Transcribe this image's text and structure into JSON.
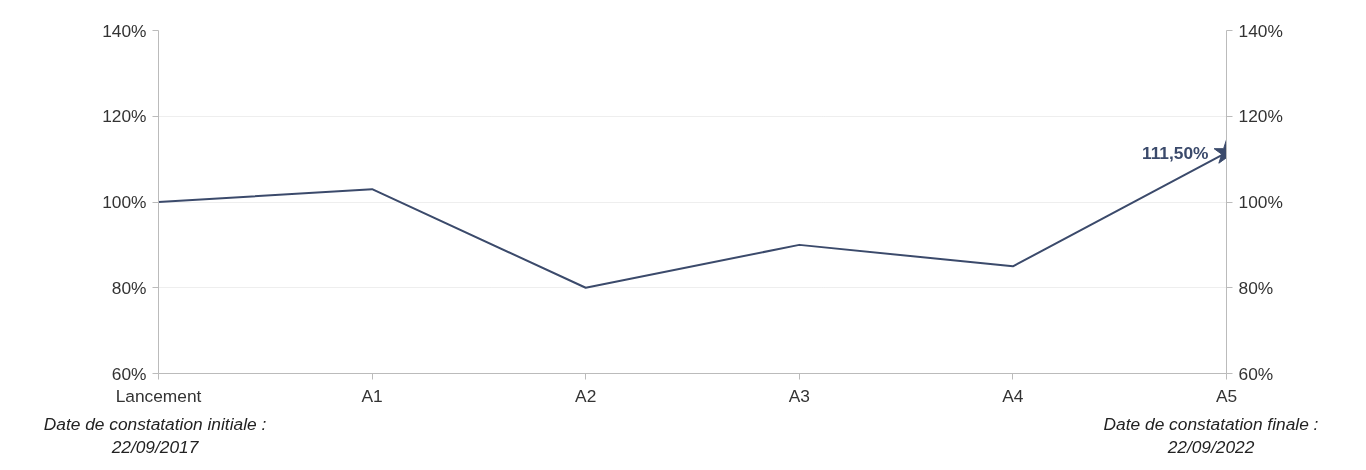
{
  "chart_data": {
    "type": "line",
    "categories": [
      "Lancement",
      "A1",
      "A2",
      "A3",
      "A4",
      "A5"
    ],
    "series": [
      {
        "color": "#3b4a6b",
        "values": [
          100,
          103,
          80,
          90,
          85,
          111.5
        ]
      },
      {
        "type": "scatter",
        "color": "#3b4a6b",
        "marker": "star",
        "values": [
          null,
          null,
          null,
          null,
          null,
          111.5
        ],
        "value_labels": [
          null,
          null,
          null,
          null,
          null,
          "111,50%"
        ]
      }
    ],
    "ylim": [
      60,
      140
    ],
    "yticks": [
      {
        "value": 60,
        "label": "60%"
      },
      {
        "value": 80,
        "label": "80%"
      },
      {
        "value": 100,
        "label": "100%"
      },
      {
        "value": 120,
        "label": "120%"
      },
      {
        "value": 140,
        "label": "140%"
      }
    ],
    "y2lim": [
      60,
      140
    ],
    "y2ticks": [
      {
        "value": 60,
        "label": "60%"
      },
      {
        "value": 80,
        "label": "80%"
      },
      {
        "value": 100,
        "label": "100%"
      },
      {
        "value": 120,
        "label": "120%"
      },
      {
        "value": 140,
        "label": "140%"
      }
    ],
    "grid": "y",
    "marker": "none",
    "annotations": [
      "Date de constatation initiale :\n22/09/2017",
      "Date de constatation finale :\n22/09/2022"
    ]
  }
}
